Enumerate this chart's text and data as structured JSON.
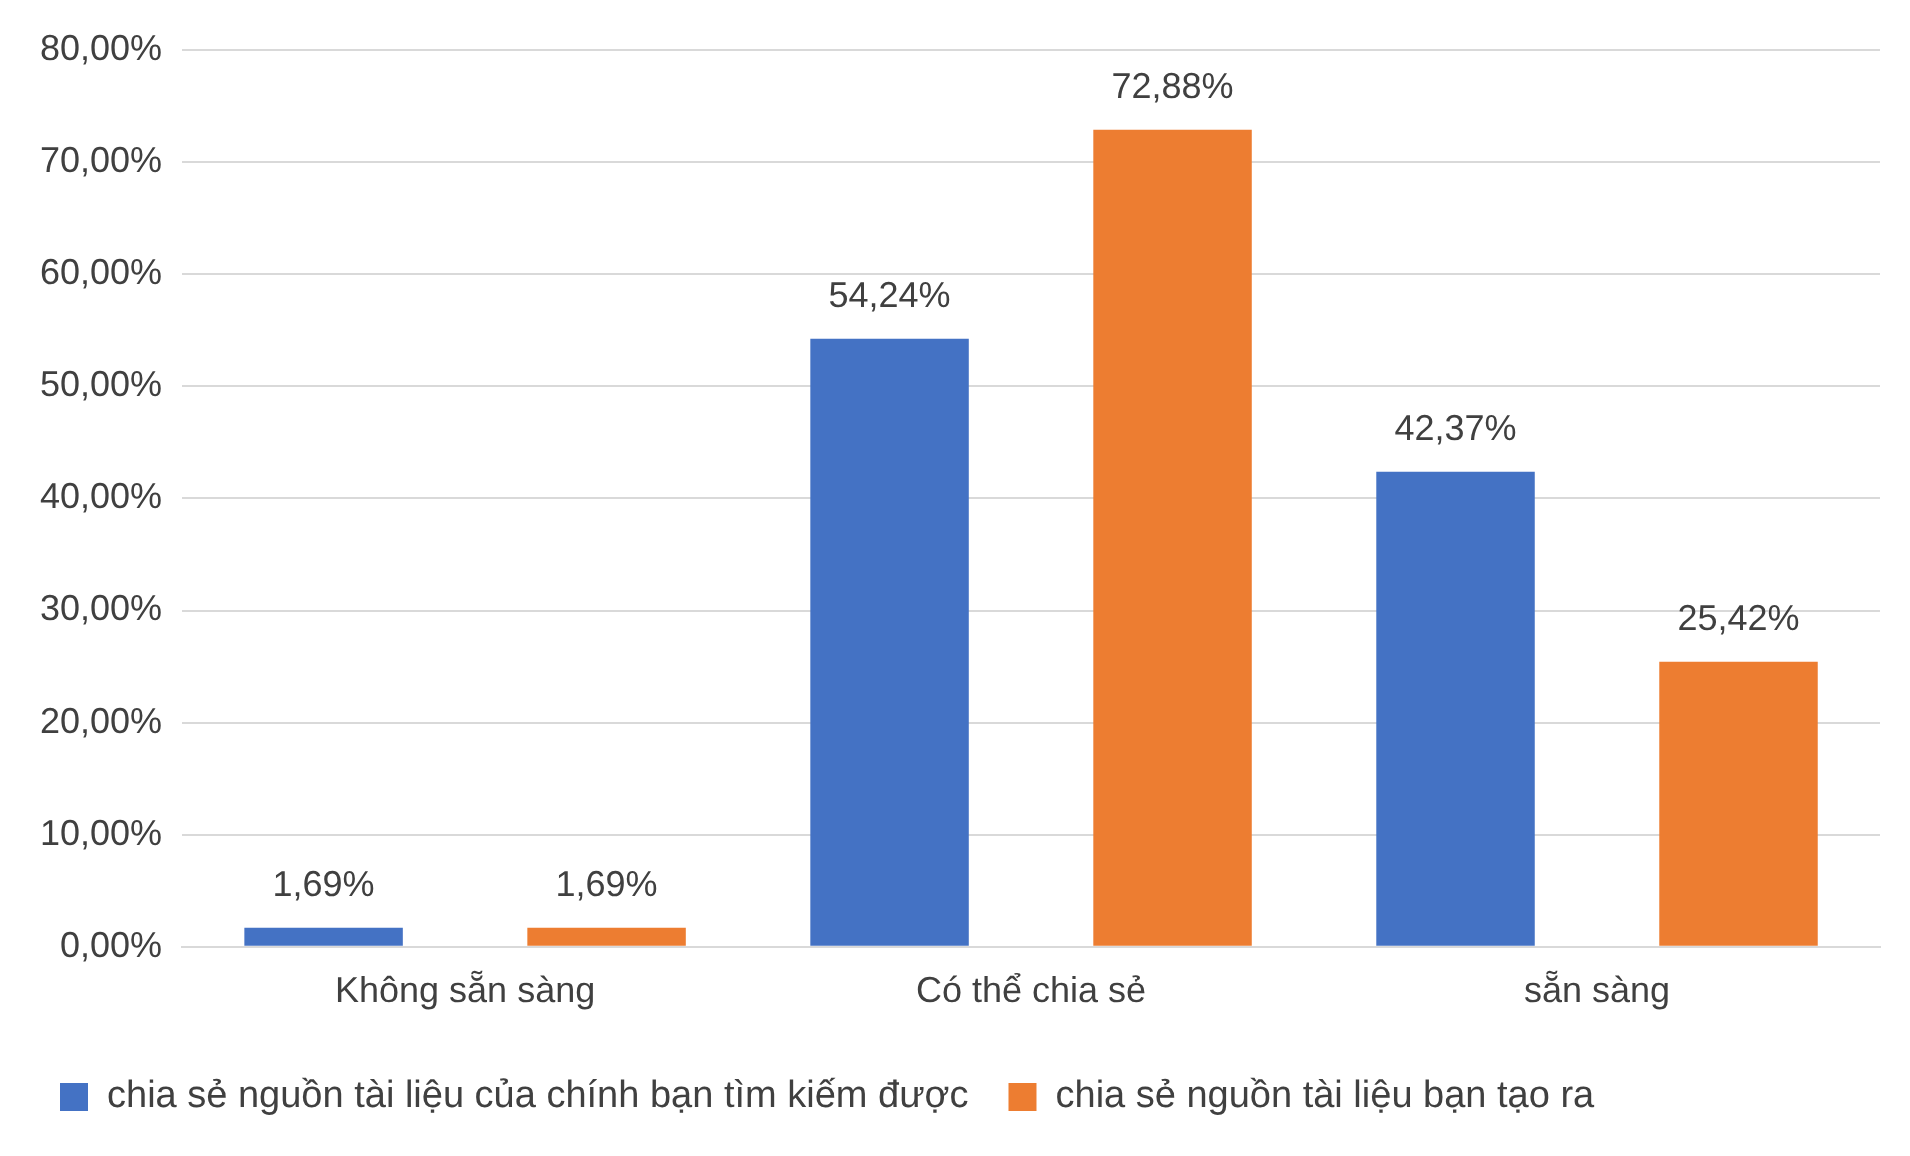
{
  "chart_data": {
    "type": "bar",
    "categories": [
      "Không sẵn sàng",
      "Có thể chia sẻ",
      "sẵn sàng"
    ],
    "series": [
      {
        "name": "chia sẻ nguồn tài liệu của chính bạn tìm kiếm được",
        "color": "#4472c4",
        "values": [
          1.69,
          54.24,
          42.37
        ],
        "value_labels": [
          "1,69%",
          "54,24%",
          "42,37%"
        ]
      },
      {
        "name": "chia sẻ nguồn tài liệu bạn tạo ra",
        "color": "#ed7d31",
        "values": [
          1.69,
          72.88,
          25.42
        ],
        "value_labels": [
          "1,69%",
          "72,88%",
          "25,42%"
        ]
      }
    ],
    "ylim": [
      0,
      80
    ],
    "yticks": [
      {
        "value": 0,
        "label": "0,00%"
      },
      {
        "value": 10,
        "label": "10,00%"
      },
      {
        "value": 20,
        "label": "20,00%"
      },
      {
        "value": 30,
        "label": "30,00%"
      },
      {
        "value": 40,
        "label": "40,00%"
      },
      {
        "value": 50,
        "label": "50,00%"
      },
      {
        "value": 60,
        "label": "60,00%"
      },
      {
        "value": 70,
        "label": "70,00%"
      },
      {
        "value": 80,
        "label": "80,00%"
      }
    ],
    "grid": "y",
    "legend": "bottom"
  }
}
